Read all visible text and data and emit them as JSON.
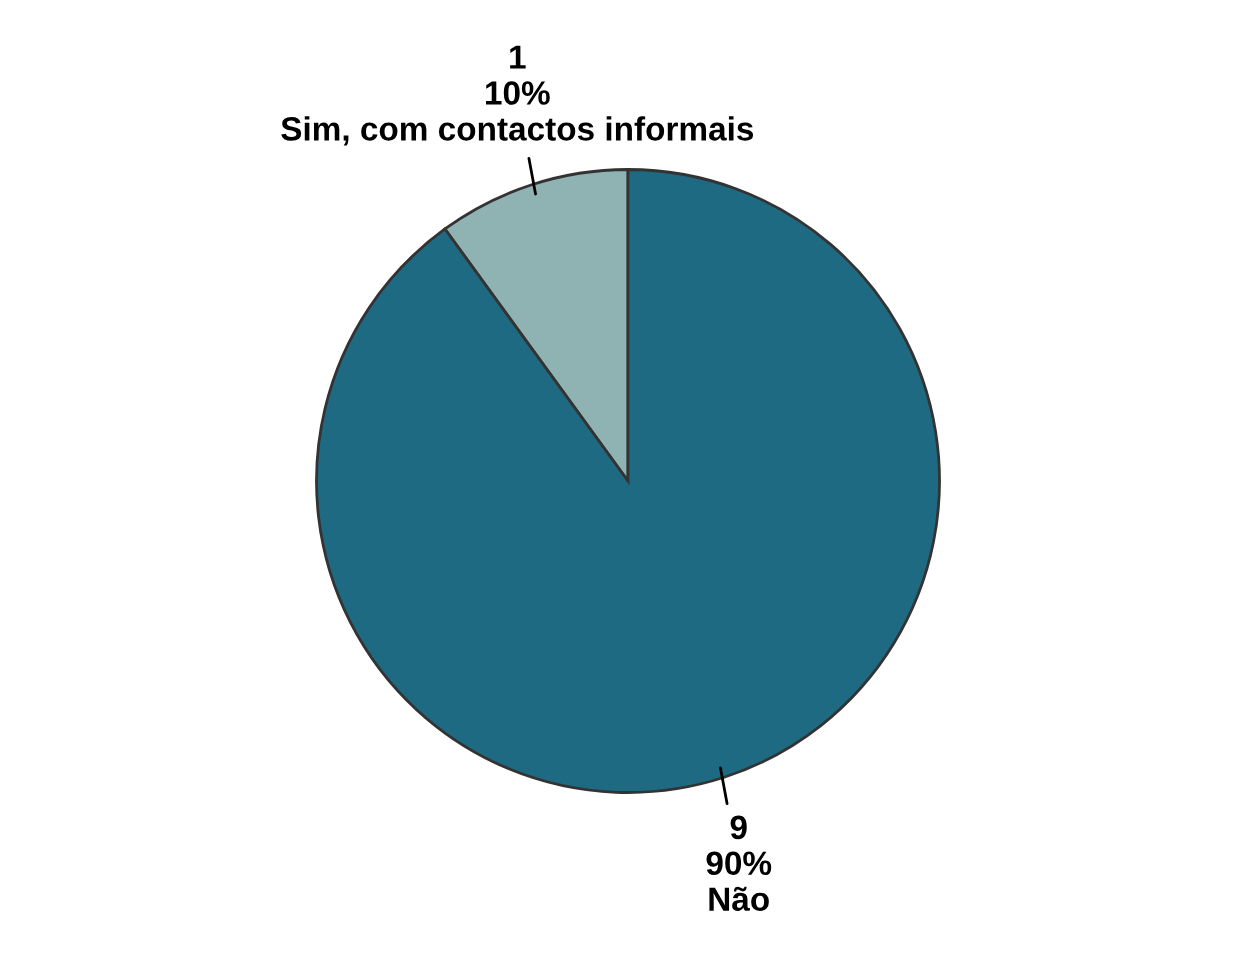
{
  "chart_data": {
    "type": "pie",
    "categories": [
      "Sim, com contactos informais",
      "Não"
    ],
    "values": [
      1,
      9
    ],
    "colors": [
      "#8fb3b3",
      "#1e6a82"
    ],
    "value_labels": [
      "1\n10%",
      "9\n90%"
    ],
    "legend": false
  }
}
